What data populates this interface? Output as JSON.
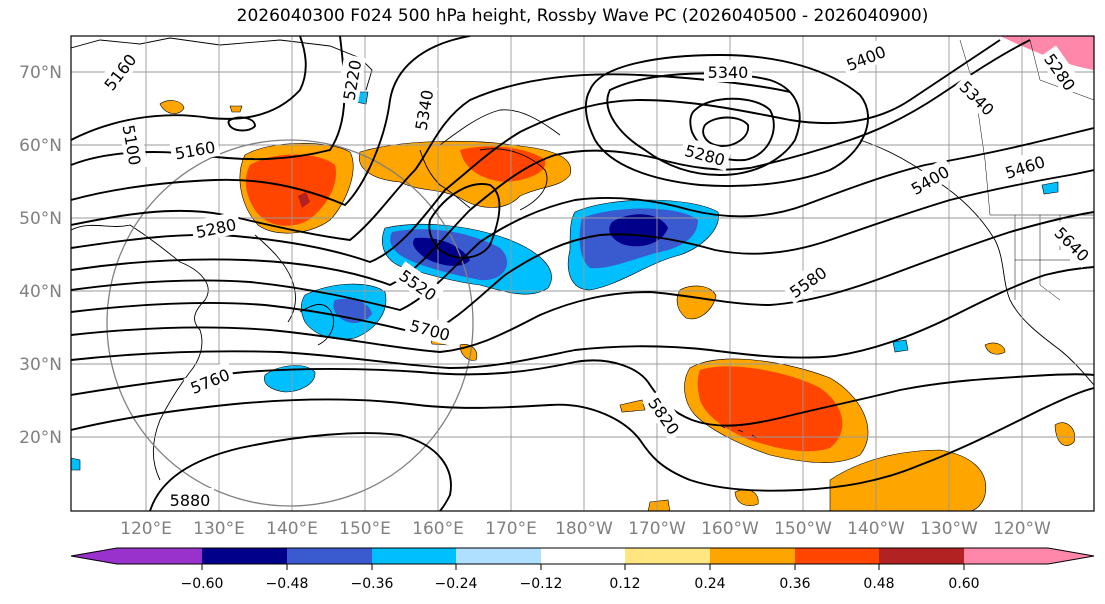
{
  "title": "2026040300 F024 500 hPa height, Rossby Wave PC (2026040500 - 2026040900)",
  "map": {
    "lat_labels": [
      "70°N",
      "60°N",
      "50°N",
      "40°N",
      "30°N",
      "20°N"
    ],
    "lon_labels": [
      "120°E",
      "130°E",
      "140°E",
      "150°E",
      "160°E",
      "170°E",
      "180°W",
      "170°W",
      "160°W",
      "150°W",
      "140°W",
      "130°W",
      "120°W"
    ],
    "contour_labels": [
      "5160",
      "5100",
      "5160",
      "5220",
      "5340",
      "5340",
      "5400",
      "5340",
      "5280",
      "5280",
      "5460",
      "5400",
      "5640",
      "5280",
      "5520",
      "5700",
      "5580",
      "5760",
      "5820",
      "5880"
    ]
  },
  "colorbar": {
    "ticks": [
      "−0.60",
      "−0.48",
      "−0.36",
      "−0.24",
      "−0.12",
      "0.12",
      "0.24",
      "0.36",
      "0.48",
      "0.60"
    ],
    "colors": [
      "#9932cc",
      "#00008b",
      "#3a5bd0",
      "#00bfff",
      "#b0e0ff",
      "#ffffff",
      "#ffe680",
      "#ffa500",
      "#ff4500",
      "#b22222",
      "#ff88aa"
    ]
  }
}
